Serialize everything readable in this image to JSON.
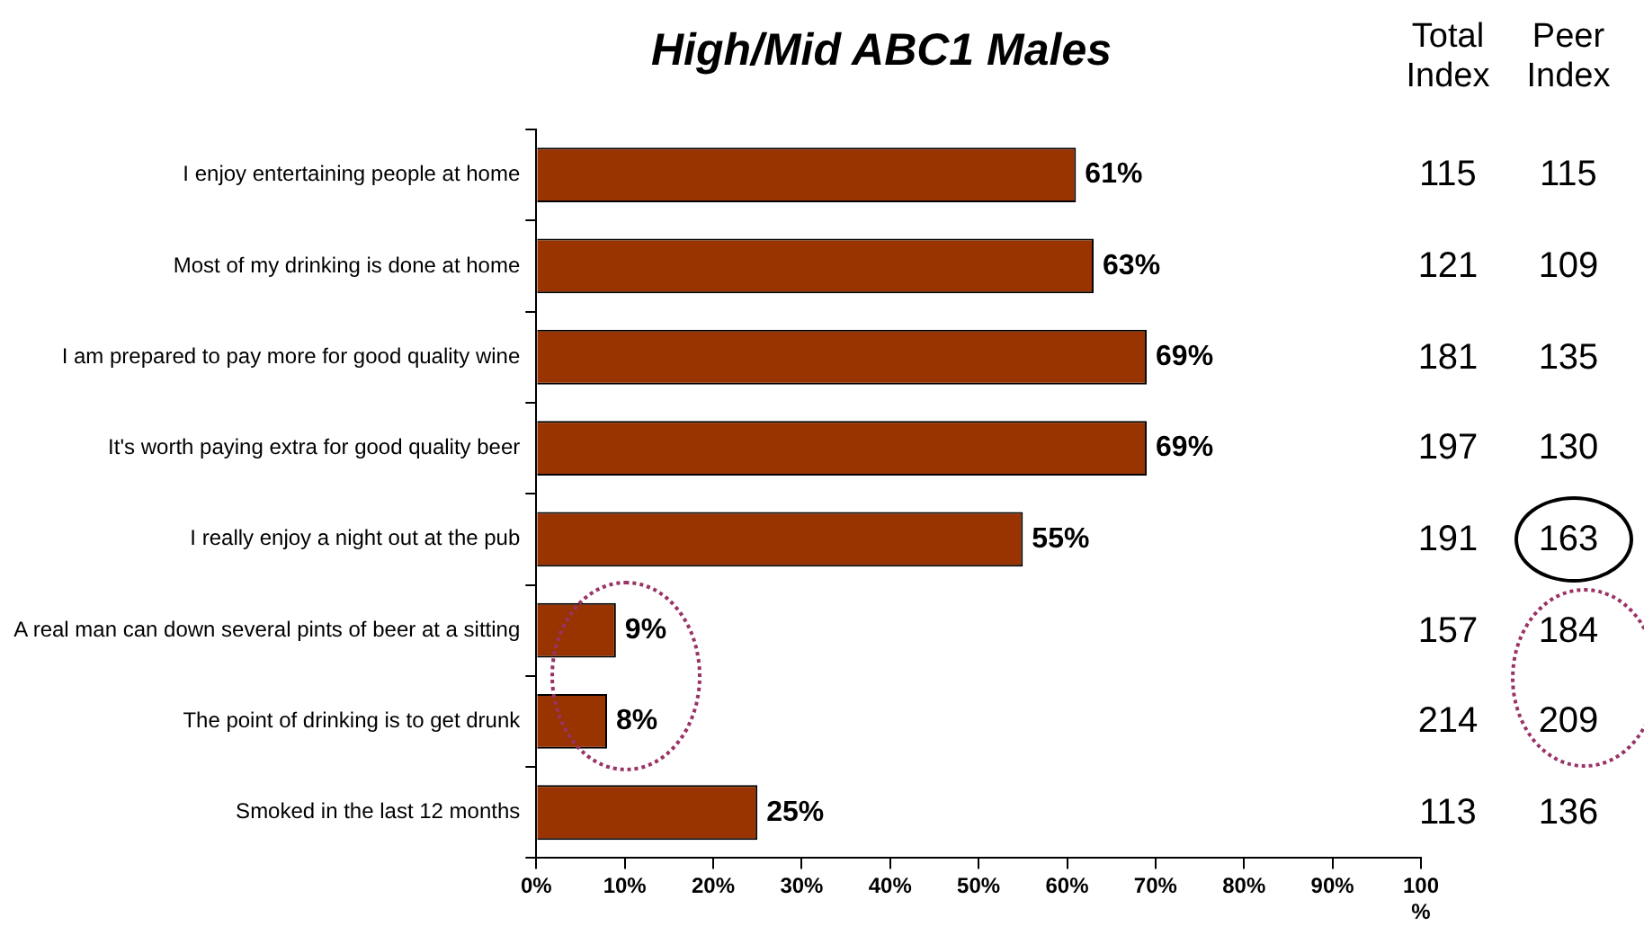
{
  "chart_data": [
    {
      "type": "bar",
      "title": "High/Mid ABC1 Males",
      "orientation": "horizontal",
      "categories": [
        "I enjoy entertaining people at home",
        "Most of my drinking is done at home",
        "I am prepared to pay more for good quality wine",
        "It's worth paying extra for good quality beer",
        "I really enjoy a night out at the pub",
        "A real man can down several pints of beer at a sitting",
        "The point of drinking is to get drunk",
        "Smoked in the last 12 months"
      ],
      "values": [
        61,
        63,
        69,
        69,
        55,
        9,
        8,
        25
      ],
      "value_labels": [
        "61%",
        "63%",
        "69%",
        "69%",
        "55%",
        "9%",
        "8%",
        "25%"
      ],
      "color": "#993300",
      "xlim": [
        0,
        100
      ],
      "xticks": [
        {
          "value": 0,
          "label": "0%"
        },
        {
          "value": 10,
          "label": "10%"
        },
        {
          "value": 20,
          "label": "20%"
        },
        {
          "value": 30,
          "label": "30%"
        },
        {
          "value": 40,
          "label": "40%"
        },
        {
          "value": 50,
          "label": "50%"
        },
        {
          "value": 60,
          "label": "60%"
        },
        {
          "value": 70,
          "label": "70%"
        },
        {
          "value": 80,
          "label": "80%"
        },
        {
          "value": 90,
          "label": "90%"
        },
        {
          "value": 100,
          "label": "100 %"
        }
      ],
      "grid": false,
      "legend": false
    },
    {
      "type": "heatmap",
      "categories": [
        "Total Index",
        "Peer Index"
      ],
      "y_categories": [
        null,
        null,
        null,
        null,
        null,
        null,
        null,
        null
      ],
      "cells": [
        [
          115,
          115
        ],
        [
          121,
          109
        ],
        [
          181,
          135
        ],
        [
          197,
          130
        ],
        [
          191,
          163
        ],
        [
          157,
          184
        ],
        [
          214,
          209
        ],
        [
          113,
          136
        ]
      ],
      "data_labels": true
    }
  ]
}
